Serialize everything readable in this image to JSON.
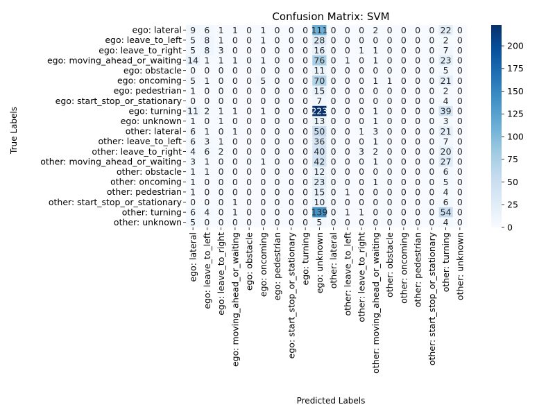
{
  "chart_data": {
    "type": "heatmap",
    "title": "Confusion Matrix: SVM",
    "xlabel": "Predicted Labels",
    "ylabel": "True Labels",
    "labels": [
      "ego: lateral",
      "ego: leave_to_left",
      "ego: leave_to_right",
      "ego: moving_ahead_or_waiting",
      "ego: obstacle",
      "ego: oncoming",
      "ego: pedestrian",
      "ego: start_stop_or_stationary",
      "ego: turning",
      "ego: unknown",
      "other: lateral",
      "other: leave_to_left",
      "other: leave_to_right",
      "other: moving_ahead_or_waiting",
      "other: obstacle",
      "other: oncoming",
      "other: pedestrian",
      "other: start_stop_or_stationary",
      "other: turning",
      "other: unknown"
    ],
    "matrix": [
      [
        9,
        6,
        1,
        1,
        0,
        1,
        0,
        0,
        0,
        111,
        0,
        0,
        0,
        2,
        0,
        0,
        0,
        0,
        22,
        0
      ],
      [
        5,
        8,
        1,
        0,
        0,
        1,
        0,
        0,
        0,
        28,
        0,
        0,
        0,
        0,
        0,
        0,
        0,
        0,
        2,
        0
      ],
      [
        5,
        8,
        3,
        0,
        0,
        0,
        0,
        0,
        0,
        16,
        0,
        0,
        1,
        1,
        0,
        0,
        0,
        0,
        7,
        0
      ],
      [
        14,
        1,
        1,
        1,
        0,
        1,
        0,
        0,
        0,
        76,
        0,
        1,
        0,
        1,
        0,
        0,
        0,
        0,
        23,
        0
      ],
      [
        0,
        0,
        0,
        0,
        0,
        0,
        0,
        0,
        0,
        11,
        0,
        0,
        0,
        0,
        0,
        0,
        0,
        0,
        5,
        0
      ],
      [
        5,
        1,
        0,
        0,
        0,
        5,
        0,
        0,
        0,
        70,
        0,
        0,
        0,
        1,
        1,
        0,
        0,
        0,
        21,
        0
      ],
      [
        1,
        0,
        0,
        0,
        0,
        0,
        0,
        0,
        0,
        15,
        0,
        0,
        0,
        0,
        0,
        0,
        0,
        0,
        2,
        0
      ],
      [
        0,
        0,
        0,
        0,
        0,
        0,
        0,
        0,
        0,
        7,
        0,
        0,
        0,
        0,
        0,
        0,
        0,
        0,
        4,
        0
      ],
      [
        11,
        2,
        1,
        1,
        0,
        1,
        0,
        0,
        0,
        223,
        0,
        0,
        0,
        1,
        0,
        0,
        0,
        0,
        39,
        0
      ],
      [
        1,
        0,
        1,
        0,
        0,
        0,
        0,
        0,
        0,
        13,
        0,
        0,
        0,
        1,
        0,
        0,
        0,
        0,
        3,
        0
      ],
      [
        6,
        1,
        0,
        1,
        0,
        0,
        0,
        0,
        0,
        50,
        0,
        0,
        1,
        3,
        0,
        0,
        0,
        0,
        21,
        0
      ],
      [
        6,
        3,
        1,
        0,
        0,
        0,
        0,
        0,
        0,
        36,
        0,
        0,
        0,
        1,
        0,
        0,
        0,
        0,
        7,
        0
      ],
      [
        4,
        6,
        2,
        0,
        0,
        0,
        0,
        0,
        0,
        40,
        0,
        0,
        3,
        2,
        0,
        0,
        0,
        0,
        20,
        0
      ],
      [
        3,
        1,
        0,
        0,
        0,
        1,
        0,
        0,
        0,
        42,
        0,
        0,
        0,
        1,
        0,
        0,
        0,
        0,
        27,
        0
      ],
      [
        1,
        1,
        0,
        0,
        0,
        0,
        0,
        0,
        0,
        12,
        0,
        0,
        0,
        0,
        0,
        0,
        0,
        0,
        6,
        0
      ],
      [
        1,
        0,
        0,
        0,
        0,
        0,
        0,
        0,
        0,
        23,
        0,
        0,
        0,
        1,
        0,
        0,
        0,
        0,
        5,
        0
      ],
      [
        1,
        0,
        0,
        0,
        0,
        0,
        0,
        0,
        0,
        15,
        0,
        1,
        0,
        0,
        0,
        0,
        0,
        0,
        4,
        0
      ],
      [
        0,
        0,
        0,
        1,
        0,
        0,
        0,
        0,
        0,
        10,
        0,
        0,
        0,
        0,
        0,
        0,
        0,
        0,
        6,
        0
      ],
      [
        6,
        4,
        0,
        1,
        0,
        0,
        0,
        0,
        0,
        139,
        0,
        1,
        1,
        0,
        0,
        0,
        0,
        0,
        54,
        0
      ],
      [
        5,
        0,
        0,
        0,
        0,
        0,
        0,
        0,
        0,
        5,
        0,
        0,
        0,
        0,
        0,
        0,
        0,
        0,
        4,
        0
      ]
    ],
    "colorbar": {
      "min": 0,
      "max": 223,
      "ticks": [
        0,
        25,
        50,
        75,
        100,
        125,
        150,
        175,
        200
      ],
      "colormap": "Blues"
    },
    "legend": "colorbar-right",
    "grid": false
  }
}
